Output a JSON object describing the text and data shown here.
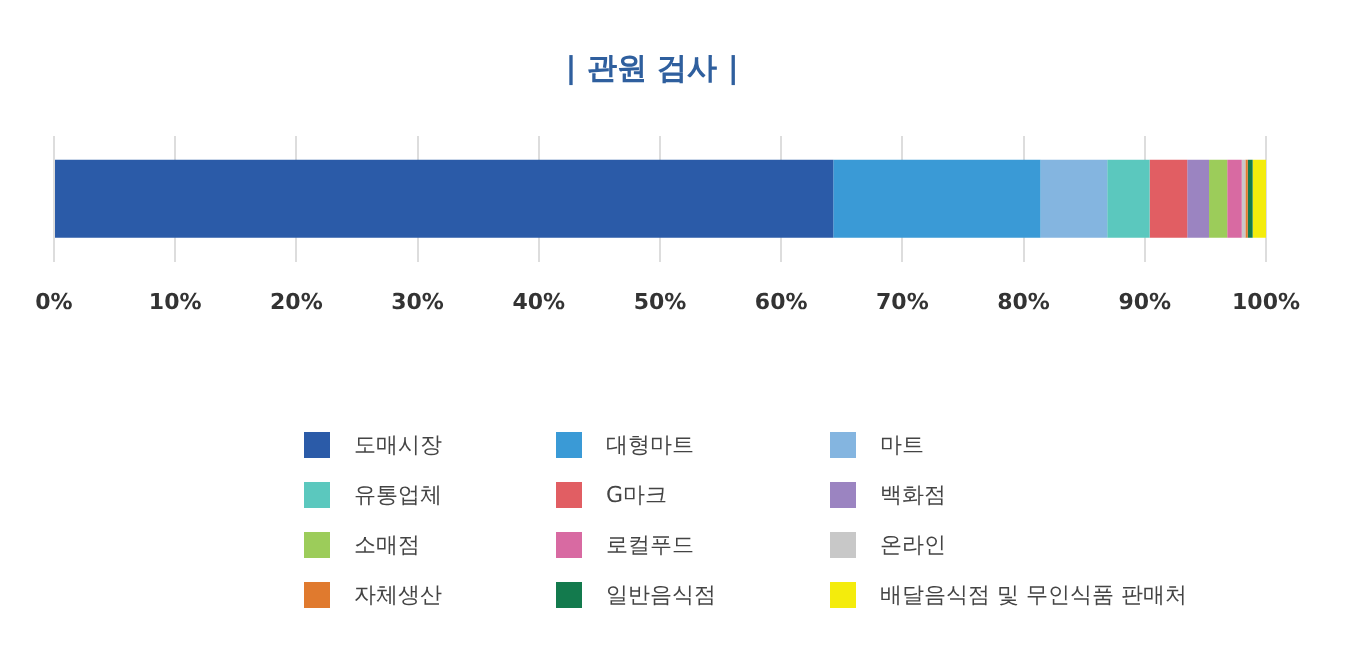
{
  "chart_data": {
    "type": "bar",
    "title": "| 관원 검사 |",
    "orientation": "horizontal",
    "stacked": true,
    "categories": [
      null
    ],
    "series": [
      {
        "name": "도매시장",
        "color": "#2b5ba8",
        "values": [
          64.3
        ]
      },
      {
        "name": "대형마트",
        "color": "#3a9ad6",
        "values": [
          17.1
        ]
      },
      {
        "name": "마트",
        "color": "#84b5e0",
        "values": [
          5.5
        ]
      },
      {
        "name": "유통업체",
        "color": "#5bc8be",
        "values": [
          3.5
        ]
      },
      {
        "name": "G마크",
        "color": "#e15e63",
        "values": [
          3.1
        ]
      },
      {
        "name": "백화점",
        "color": "#9b84c1",
        "values": [
          1.8
        ]
      },
      {
        "name": "소매점",
        "color": "#9ccc5a",
        "values": [
          1.5
        ]
      },
      {
        "name": "로컬푸드",
        "color": "#d86aa2",
        "values": [
          1.2
        ]
      },
      {
        "name": "온라인",
        "color": "#c8c8c8",
        "values": [
          0.3
        ]
      },
      {
        "name": "자체생산",
        "color": "#e07a2e",
        "values": [
          0.2
        ]
      },
      {
        "name": "일반음식점",
        "color": "#137a4d",
        "values": [
          0.4
        ]
      },
      {
        "name": "배달음식점 및 무인식품 판매처",
        "color": "#f4ec0c",
        "values": [
          1.1
        ]
      }
    ],
    "xlim": [
      0,
      100
    ],
    "xticks": [
      {
        "value": 0,
        "label": "0%"
      },
      {
        "value": 10,
        "label": "10%"
      },
      {
        "value": 20,
        "label": "20%"
      },
      {
        "value": 30,
        "label": "30%"
      },
      {
        "value": 40,
        "label": "40%"
      },
      {
        "value": 50,
        "label": "50%"
      },
      {
        "value": 60,
        "label": "60%"
      },
      {
        "value": 70,
        "label": "70%"
      },
      {
        "value": 80,
        "label": "80%"
      },
      {
        "value": 90,
        "label": "90%"
      },
      {
        "value": 100,
        "label": "100%"
      }
    ],
    "grid": "x",
    "legend": "bottom"
  }
}
